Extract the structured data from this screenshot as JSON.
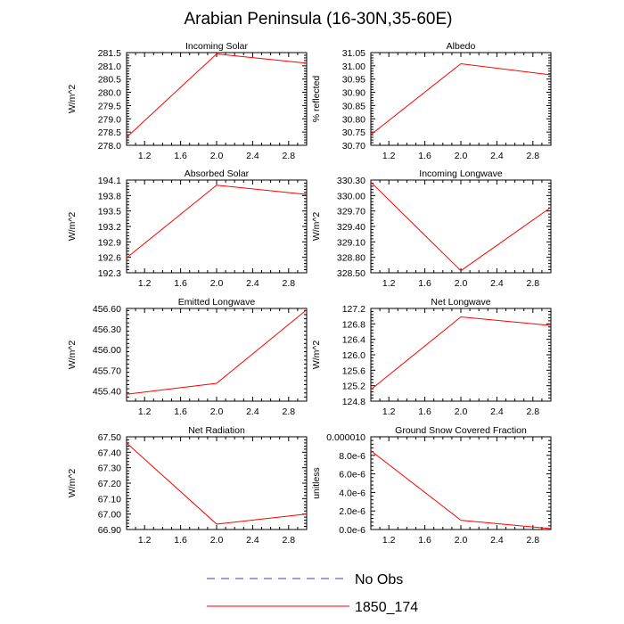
{
  "title": "Arabian Peninsula (16-30N,35-60E)",
  "line_color": "#ff0000",
  "legend": [
    {
      "label": "No Obs",
      "style": "dashed",
      "color": "#3b3bbf"
    },
    {
      "label": "1850_174",
      "style": "solid",
      "color": "#ff0000"
    }
  ],
  "chart_data": [
    {
      "type": "line",
      "title": "Incoming Solar",
      "ylabel": "W/m^2",
      "x": [
        1.0,
        2.0,
        3.0
      ],
      "y": [
        278.3,
        281.45,
        281.1
      ],
      "xlim": [
        1.0,
        3.0
      ],
      "ylim": [
        278.0,
        281.5
      ],
      "xticks": [
        1.2,
        1.6,
        2.0,
        2.4,
        2.8
      ],
      "xtick_labels": [
        "1.2",
        "1.6",
        "2.0",
        "2.4",
        "2.8"
      ],
      "yticks": [
        278.0,
        278.5,
        279.0,
        279.5,
        280.0,
        280.5,
        281.0,
        281.5
      ],
      "ytick_labels": [
        "278.0",
        "278.5",
        "279.0",
        "279.5",
        "280.0",
        "280.5",
        "281.0",
        "281.5"
      ]
    },
    {
      "type": "line",
      "title": "Albedo",
      "ylabel": "% reflected",
      "x": [
        1.0,
        2.0,
        3.0
      ],
      "y": [
        30.74,
        31.008,
        30.966
      ],
      "xlim": [
        1.0,
        3.0
      ],
      "ylim": [
        30.7,
        31.05
      ],
      "xticks": [
        1.2,
        1.6,
        2.0,
        2.4,
        2.8
      ],
      "xtick_labels": [
        "1.2",
        "1.6",
        "2.0",
        "2.4",
        "2.8"
      ],
      "yticks": [
        30.7,
        30.75,
        30.8,
        30.85,
        30.9,
        30.95,
        31.0,
        31.05
      ],
      "ytick_labels": [
        "30.70",
        "30.75",
        "30.80",
        "30.85",
        "30.90",
        "30.95",
        "31.00",
        "31.05"
      ]
    },
    {
      "type": "line",
      "title": "Absorbed Solar",
      "ylabel": "W/m^2",
      "x": [
        1.0,
        2.0,
        3.0
      ],
      "y": [
        192.59,
        194.0,
        193.82
      ],
      "xlim": [
        1.0,
        3.0
      ],
      "ylim": [
        192.3,
        194.1
      ],
      "xticks": [
        1.2,
        1.6,
        2.0,
        2.4,
        2.8
      ],
      "xtick_labels": [
        "1.2",
        "1.6",
        "2.0",
        "2.4",
        "2.8"
      ],
      "yticks": [
        192.3,
        192.6,
        192.9,
        193.2,
        193.5,
        193.8,
        194.1
      ],
      "ytick_labels": [
        "192.3",
        "192.6",
        "192.9",
        "193.2",
        "193.5",
        "193.8",
        "194.1"
      ]
    },
    {
      "type": "line",
      "title": "Incoming Longwave",
      "ylabel": "W/m^2",
      "x": [
        1.0,
        2.0,
        3.0
      ],
      "y": [
        330.26,
        328.54,
        329.77
      ],
      "xlim": [
        1.0,
        3.0
      ],
      "ylim": [
        328.5,
        330.3
      ],
      "xticks": [
        1.2,
        1.6,
        2.0,
        2.4,
        2.8
      ],
      "xtick_labels": [
        "1.2",
        "1.6",
        "2.0",
        "2.4",
        "2.8"
      ],
      "yticks": [
        328.5,
        328.8,
        329.1,
        329.4,
        329.7,
        330.0,
        330.3
      ],
      "ytick_labels": [
        "328.50",
        "328.80",
        "329.10",
        "329.40",
        "329.70",
        "330.00",
        "330.30"
      ]
    },
    {
      "type": "line",
      "title": "Emitted Longwave",
      "ylabel": "W/m^2",
      "x": [
        1.0,
        2.0,
        3.0
      ],
      "y": [
        455.35,
        455.51,
        456.58
      ],
      "xlim": [
        1.0,
        3.0
      ],
      "ylim": [
        455.25,
        456.6
      ],
      "xticks": [
        1.2,
        1.6,
        2.0,
        2.4,
        2.8
      ],
      "xtick_labels": [
        "1.2",
        "1.6",
        "2.0",
        "2.4",
        "2.8"
      ],
      "yticks": [
        455.4,
        455.7,
        456.0,
        456.3,
        456.6
      ],
      "ytick_labels": [
        "455.40",
        "455.70",
        "456.00",
        "456.30",
        "456.60"
      ]
    },
    {
      "type": "line",
      "title": "Net Longwave",
      "ylabel": "W/m^2",
      "x": [
        1.0,
        2.0,
        3.0
      ],
      "y": [
        125.1,
        126.98,
        126.76
      ],
      "xlim": [
        1.0,
        3.0
      ],
      "ylim": [
        124.8,
        127.2
      ],
      "xticks": [
        1.2,
        1.6,
        2.0,
        2.4,
        2.8
      ],
      "xtick_labels": [
        "1.2",
        "1.6",
        "2.0",
        "2.4",
        "2.8"
      ],
      "yticks": [
        124.8,
        125.2,
        125.6,
        126.0,
        126.4,
        126.8,
        127.2
      ],
      "ytick_labels": [
        "124.8",
        "125.2",
        "125.6",
        "126.0",
        "126.4",
        "126.8",
        "127.2"
      ]
    },
    {
      "type": "line",
      "title": "Net Radiation",
      "ylabel": "W/m^2",
      "x": [
        1.0,
        2.0,
        3.0
      ],
      "y": [
        67.46,
        66.935,
        67.0
      ],
      "xlim": [
        1.0,
        3.0
      ],
      "ylim": [
        66.9,
        67.5
      ],
      "xticks": [
        1.2,
        1.6,
        2.0,
        2.4,
        2.8
      ],
      "xtick_labels": [
        "1.2",
        "1.6",
        "2.0",
        "2.4",
        "2.8"
      ],
      "yticks": [
        66.9,
        67.0,
        67.1,
        67.2,
        67.3,
        67.4,
        67.5
      ],
      "ytick_labels": [
        "66.90",
        "67.00",
        "67.10",
        "67.20",
        "67.30",
        "67.40",
        "67.50"
      ]
    },
    {
      "type": "line",
      "title": "Ground Snow Covered Fraction",
      "ylabel": "unitless",
      "x": [
        1.0,
        2.0,
        3.0
      ],
      "y": [
        8.5e-06,
        1e-06,
        1e-07
      ],
      "xlim": [
        1.0,
        3.0
      ],
      "ylim": [
        0.0,
        1e-05
      ],
      "xticks": [
        1.2,
        1.6,
        2.0,
        2.4,
        2.8
      ],
      "xtick_labels": [
        "1.2",
        "1.6",
        "2.0",
        "2.4",
        "2.8"
      ],
      "yticks": [
        0.0,
        2e-06,
        4e-06,
        6e-06,
        8e-06,
        1e-05
      ],
      "ytick_labels": [
        "0.0e-6",
        "2.0e-6",
        "4.0e-6",
        "6.0e-6",
        "8.0e-6",
        "0.000010"
      ]
    }
  ]
}
